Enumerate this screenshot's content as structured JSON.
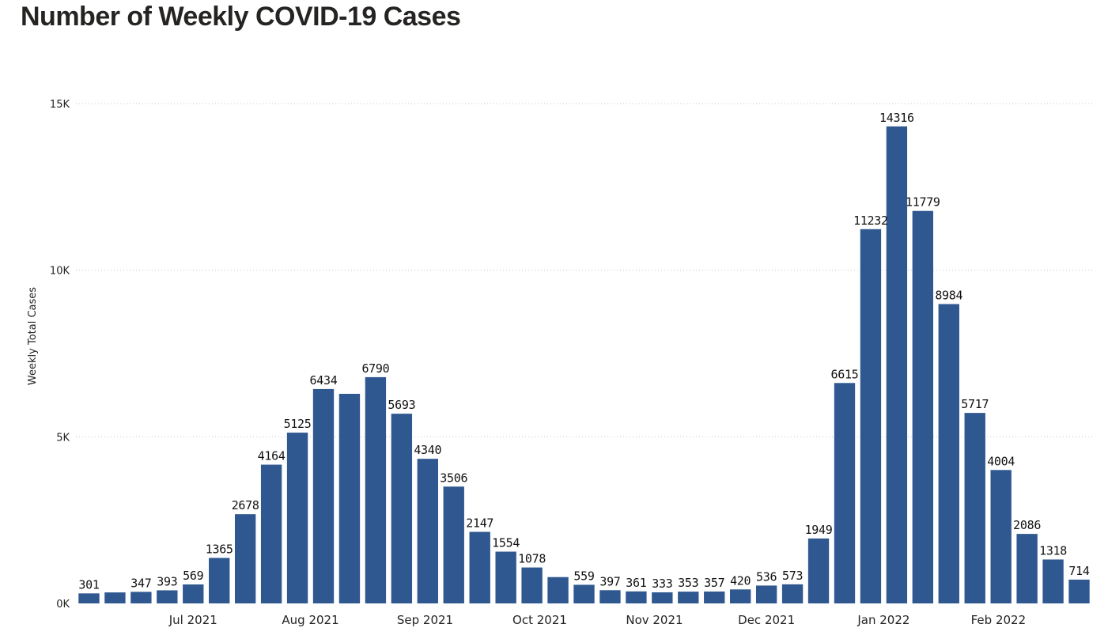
{
  "chart_data": {
    "type": "bar",
    "title": "Number of Weekly COVID-19 Cases",
    "xlabel": "",
    "ylabel": "Weekly Total Cases",
    "ylim": [
      0,
      15000
    ],
    "yticks": [
      {
        "value": 0,
        "label": "0K"
      },
      {
        "value": 5000,
        "label": "5K"
      },
      {
        "value": 10000,
        "label": "10K"
      },
      {
        "value": 15000,
        "label": "15K"
      }
    ],
    "grid": true,
    "bar_color": "#2f5890",
    "xtick_labels": [
      {
        "label": "Jul 2021",
        "index": 4
      },
      {
        "label": "Aug 2021",
        "index": 8.5
      },
      {
        "label": "Sep 2021",
        "index": 12.9
      },
      {
        "label": "Oct 2021",
        "index": 17.3
      },
      {
        "label": "Nov 2021",
        "index": 21.7
      },
      {
        "label": "Dec 2021",
        "index": 26
      },
      {
        "label": "Jan 2022",
        "index": 30.5
      },
      {
        "label": "Feb 2022",
        "index": 34.9
      }
    ],
    "values": [
      301,
      330,
      347,
      393,
      569,
      1365,
      2678,
      4164,
      5125,
      6434,
      6290,
      6790,
      5693,
      4340,
      3506,
      2147,
      1554,
      1078,
      790,
      559,
      397,
      361,
      333,
      353,
      357,
      420,
      536,
      573,
      1949,
      6615,
      11232,
      14316,
      11779,
      8984,
      5717,
      4004,
      2086,
      1318,
      714
    ],
    "labels": [
      "301",
      "",
      "347",
      "393",
      "569",
      "1365",
      "2678",
      "4164",
      "5125",
      "6434",
      "",
      "6790",
      "5693",
      "4340",
      "3506",
      "2147",
      "1554",
      "1078",
      "",
      "559",
      "397",
      "361",
      "333",
      "353",
      "357",
      "420",
      "536",
      "573",
      "1949",
      "6615",
      "11232",
      "14316",
      "11779",
      "8984",
      "5717",
      "4004",
      "2086",
      "1318",
      "714"
    ]
  }
}
